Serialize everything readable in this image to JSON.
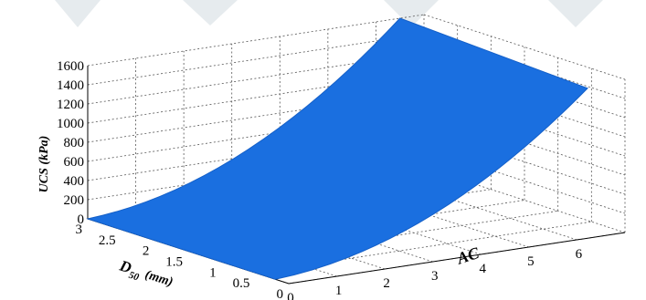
{
  "chart_data": {
    "type": "surface",
    "title": "",
    "axes": {
      "x": {
        "label": "AC",
        "ticks": [
          "0",
          "1",
          "2",
          "3",
          "4",
          "5",
          "6"
        ],
        "range": [
          0,
          7
        ]
      },
      "y": {
        "label": "D",
        "label_subscript": "50",
        "label_unit": "(mm)",
        "ticks": [
          "0",
          "0.5",
          "1",
          "1.5",
          "2",
          "2.5",
          "3"
        ],
        "range": [
          0,
          3
        ]
      },
      "z": {
        "label": "UCS (kPa)",
        "ticks": [
          "0",
          "200",
          "400",
          "600",
          "800",
          "1000",
          "1200",
          "1400",
          "1600"
        ],
        "range": [
          0,
          1600
        ]
      }
    },
    "surface": {
      "color": "#1a6fe0",
      "x_range": [
        0,
        6.5
      ],
      "y_range": [
        0.2,
        3
      ],
      "corners": [
        {
          "x": 0,
          "y": 3,
          "z": 0
        },
        {
          "x": 0,
          "y": 0.2,
          "z": 0
        },
        {
          "x": 6.5,
          "y": 0.2,
          "z": 1500
        },
        {
          "x": 6.5,
          "y": 3,
          "z": 1600
        }
      ]
    },
    "grid": true
  }
}
